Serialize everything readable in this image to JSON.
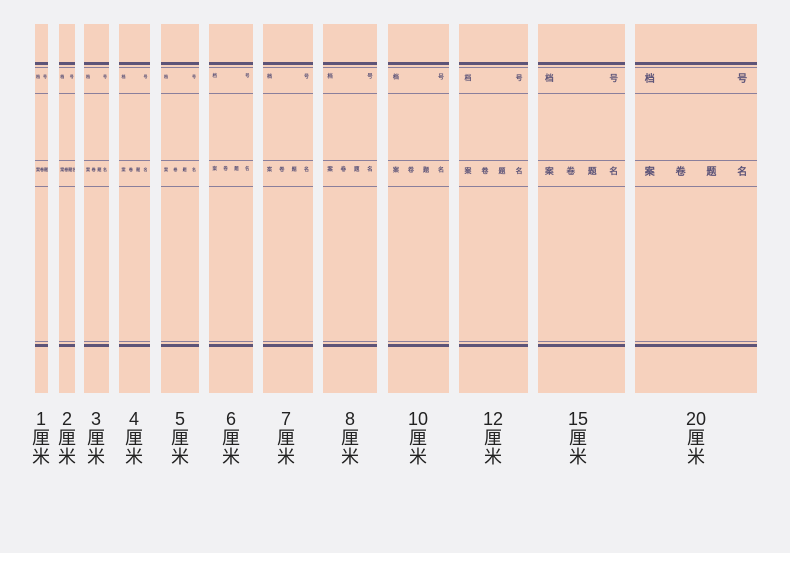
{
  "spines": [
    {
      "size": "1",
      "unit": "厘",
      "unit2": "米",
      "field_label": "档号",
      "title_label": "案卷题名"
    },
    {
      "size": "2",
      "unit": "厘",
      "unit2": "米",
      "field_label": "档号",
      "title_label": "案卷题名"
    },
    {
      "size": "3",
      "unit": "厘",
      "unit2": "米",
      "field_label": "档号",
      "title_label": "案卷题名"
    },
    {
      "size": "4",
      "unit": "厘",
      "unit2": "米",
      "field_label": "档号",
      "title_label": "案卷题名"
    },
    {
      "size": "5",
      "unit": "厘",
      "unit2": "米",
      "field_label": "档号",
      "title_label": "案卷题名"
    },
    {
      "size": "6",
      "unit": "厘",
      "unit2": "米",
      "field_label": "档号",
      "title_label": "案卷题名"
    },
    {
      "size": "7",
      "unit": "厘",
      "unit2": "米",
      "field_label": "档号",
      "title_label": "案卷题名"
    },
    {
      "size": "8",
      "unit": "厘",
      "unit2": "米",
      "field_label": "档号",
      "title_label": "案卷题名"
    },
    {
      "size": "10",
      "unit": "厘",
      "unit2": "米",
      "field_label": "档号",
      "title_label": "案卷题名"
    },
    {
      "size": "12",
      "unit": "厘",
      "unit2": "米",
      "field_label": "档号",
      "title_label": "案卷题名"
    },
    {
      "size": "15",
      "unit": "厘",
      "unit2": "米",
      "field_label": "档号",
      "title_label": "案卷题名"
    },
    {
      "size": "20",
      "unit": "厘",
      "unit2": "米",
      "field_label": "档号",
      "title_label": "案卷题名"
    }
  ],
  "colors": {
    "spine_fill": "#f6d1bd",
    "rule_color": "#5d5478",
    "page_background": "#f1f1f3"
  }
}
